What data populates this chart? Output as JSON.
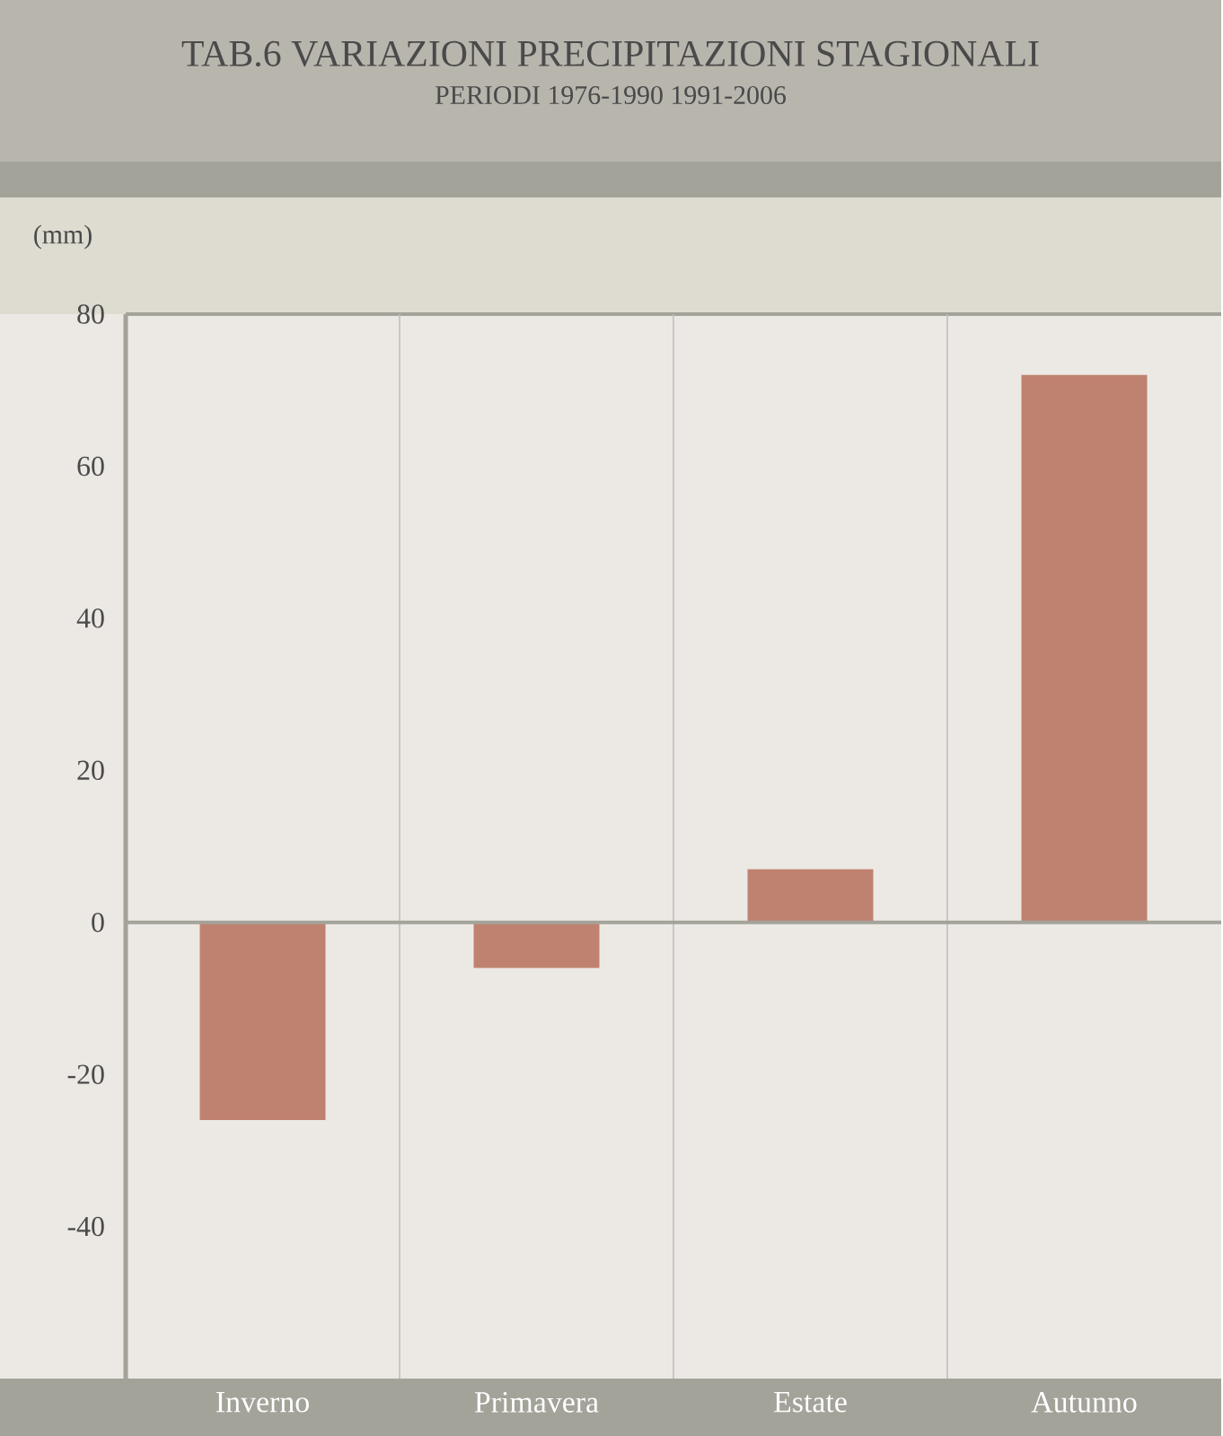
{
  "chart_data": {
    "type": "bar",
    "title": "TAB.6  VARIAZIONI PRECIPITAZIONI STAGIONALI",
    "subtitle": "PERIODI 1976-1990  1991-2006",
    "annotations": [
      "(mm)"
    ],
    "categories": [
      "Inverno",
      "Primavera",
      "Estate",
      "Autunno"
    ],
    "values": [
      -26,
      -6,
      7,
      72
    ],
    "color": "#c08270",
    "ylim": [
      -60,
      80
    ],
    "yticks": [
      -40,
      -20,
      0,
      20,
      40,
      60,
      80
    ]
  }
}
